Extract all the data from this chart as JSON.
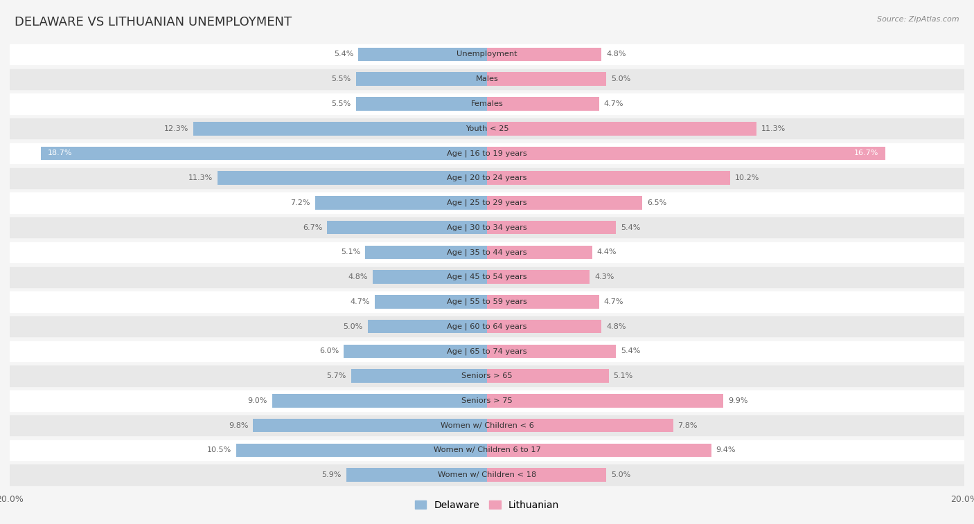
{
  "title": "DELAWARE VS LITHUANIAN UNEMPLOYMENT",
  "source": "Source: ZipAtlas.com",
  "categories": [
    "Unemployment",
    "Males",
    "Females",
    "Youth < 25",
    "Age | 16 to 19 years",
    "Age | 20 to 24 years",
    "Age | 25 to 29 years",
    "Age | 30 to 34 years",
    "Age | 35 to 44 years",
    "Age | 45 to 54 years",
    "Age | 55 to 59 years",
    "Age | 60 to 64 years",
    "Age | 65 to 74 years",
    "Seniors > 65",
    "Seniors > 75",
    "Women w/ Children < 6",
    "Women w/ Children 6 to 17",
    "Women w/ Children < 18"
  ],
  "delaware": [
    5.4,
    5.5,
    5.5,
    12.3,
    18.7,
    11.3,
    7.2,
    6.7,
    5.1,
    4.8,
    4.7,
    5.0,
    6.0,
    5.7,
    9.0,
    9.8,
    10.5,
    5.9
  ],
  "lithuanian": [
    4.8,
    5.0,
    4.7,
    11.3,
    16.7,
    10.2,
    6.5,
    5.4,
    4.4,
    4.3,
    4.7,
    4.8,
    5.4,
    5.1,
    9.9,
    7.8,
    9.4,
    5.0
  ],
  "delaware_color": "#92b8d8",
  "lithuanian_color": "#f0a0b8",
  "bg_color": "#f5f5f5",
  "row_color_light": "#ffffff",
  "row_color_dark": "#e8e8e8",
  "max_val": 20.0,
  "legend_delaware": "Delaware",
  "legend_lithuanian": "Lithuanian",
  "label_color_outside": "#666666",
  "label_color_inside": "#ffffff"
}
